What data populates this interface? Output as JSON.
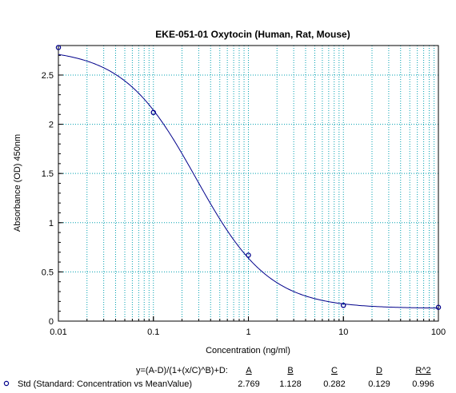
{
  "chart_data": {
    "type": "scatter",
    "title": "EKE-051-01 Oxytocin (Human, Rat, Mouse)",
    "xlabel": "Concentration (ng/ml)",
    "ylabel": "Absorbance (OD) 450nm",
    "x_scale": "log",
    "xlim": [
      0.01,
      100
    ],
    "ylim": [
      0,
      2.8
    ],
    "x_ticks": [
      "0.01",
      "0.1",
      "1",
      "10",
      "100"
    ],
    "y_ticks": [
      "0",
      "0.5",
      "1",
      "1.5",
      "2",
      "2.5"
    ],
    "grid": true,
    "series": [
      {
        "name": "Std (Standard: Concentration vs MeanValue)",
        "x": [
          0.01,
          0.1,
          1,
          10,
          100
        ],
        "y": [
          2.78,
          2.12,
          0.67,
          0.16,
          0.14
        ]
      }
    ],
    "fit": {
      "equation": "y=(A-D)/(1+(x/C)^B)+D:",
      "headers": [
        "A",
        "B",
        "C",
        "D",
        "R^2"
      ],
      "values": [
        "2.769",
        "1.128",
        "0.282",
        "0.129",
        "0.996"
      ],
      "params": {
        "A": 2.769,
        "B": 1.128,
        "C": 0.282,
        "D": 0.129
      }
    },
    "colors": {
      "curve": "#00008b",
      "points": "#00008b",
      "grid": "#00a0b0",
      "axis": "#000000"
    }
  }
}
